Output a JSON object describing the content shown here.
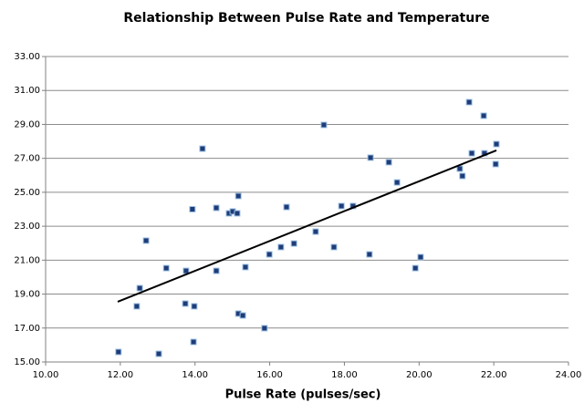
{
  "chart_data": {
    "type": "scatter",
    "title": "Relationship Between Pulse Rate and Temperature",
    "x_label": "Pulse Rate (pulses/sec)",
    "series": [
      {
        "color": "#1f3c78",
        "x": [
          11.95,
          12.44,
          12.52,
          12.69,
          13.03,
          13.23,
          13.76,
          13.74,
          13.93,
          13.98,
          13.96,
          14.2,
          14.57,
          14.57,
          14.91,
          15.01,
          15.13,
          15.16,
          15.16,
          15.28,
          15.35,
          15.86,
          15.99,
          16.3,
          16.45,
          16.65,
          17.23,
          17.45,
          17.72,
          17.92,
          18.23,
          18.7,
          18.67,
          19.19,
          19.41,
          19.9,
          20.04,
          21.09,
          21.16,
          21.34,
          21.41,
          21.73,
          21.75,
          22.07,
          22.05
        ],
        "values": [
          15.59,
          18.28,
          19.35,
          22.15,
          15.48,
          20.53,
          20.37,
          18.44,
          24.0,
          18.28,
          16.18,
          27.57,
          24.08,
          20.37,
          23.76,
          23.87,
          23.76,
          24.78,
          17.85,
          17.74,
          20.59,
          16.99,
          21.34,
          21.77,
          24.13,
          21.98,
          22.68,
          28.97,
          21.77,
          24.19,
          24.19,
          27.04,
          21.34,
          26.77,
          25.58,
          20.53,
          21.18,
          26.39,
          25.96,
          30.31,
          27.3,
          29.51,
          27.3,
          27.84,
          26.66
        ]
      }
    ],
    "trendline": {
      "color": "#000000",
      "x": [
        11.93,
        22.07
      ],
      "values": [
        18.55,
        27.47
      ]
    },
    "xlim": [
      10,
      24
    ],
    "xticks": [
      {
        "value": 10,
        "label": "10.00"
      },
      {
        "value": 12,
        "label": "12.00"
      },
      {
        "value": 14,
        "label": "14.00"
      },
      {
        "value": 16,
        "label": "16.00"
      },
      {
        "value": 18,
        "label": "18.00"
      },
      {
        "value": 20,
        "label": "20.00"
      },
      {
        "value": 22,
        "label": "22.00"
      },
      {
        "value": 24,
        "label": "24.00"
      }
    ],
    "ylim": [
      15,
      33
    ],
    "yticks": [
      {
        "value": 15,
        "label": "15.00"
      },
      {
        "value": 17,
        "label": "17.00"
      },
      {
        "value": 19,
        "label": "19.00"
      },
      {
        "value": 21,
        "label": "21.00"
      },
      {
        "value": 23,
        "label": "23.00"
      },
      {
        "value": 25,
        "label": "25.00"
      },
      {
        "value": 27,
        "label": "27.00"
      },
      {
        "value": 29,
        "label": "29.00"
      },
      {
        "value": 31,
        "label": "31.00"
      },
      {
        "value": 33,
        "label": "33.00"
      }
    ],
    "grid": true
  }
}
